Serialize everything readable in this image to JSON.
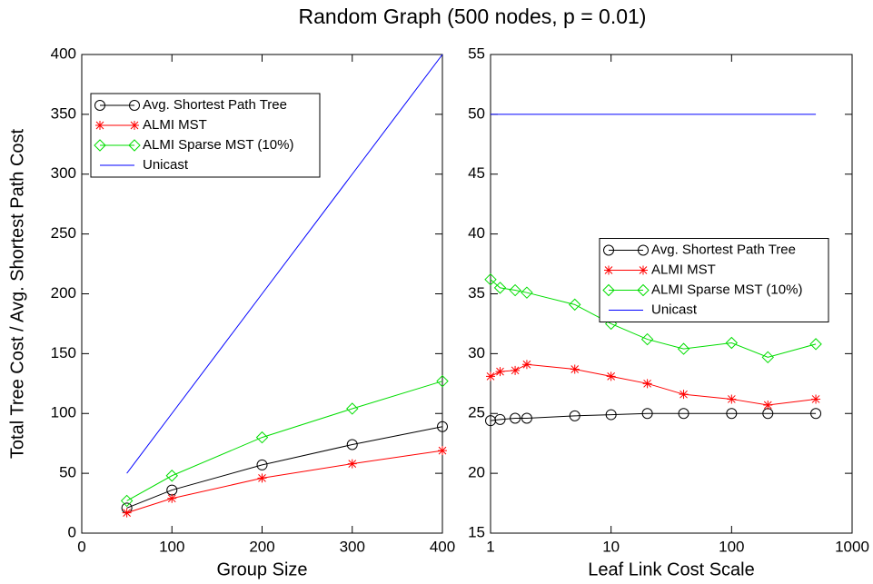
{
  "title": "Random Graph (500 nodes, p = 0.01)",
  "chart_data": [
    {
      "type": "line",
      "xlabel": "Group Size",
      "ylabel": "Total Tree Cost / Avg. Shortest Path Cost",
      "xlim": [
        0,
        400
      ],
      "xticks": [
        0,
        100,
        200,
        300,
        400
      ],
      "ylim": [
        0,
        400
      ],
      "yticks": [
        0,
        50,
        100,
        150,
        200,
        250,
        300,
        350,
        400
      ],
      "xscale": "linear",
      "legend": "upper left",
      "x": [
        50,
        100,
        200,
        300,
        400
      ],
      "series": [
        {
          "name": "Avg. Shortest Path Tree",
          "color": "#000000",
          "marker": "circle",
          "values": [
            21,
            36,
            57,
            74,
            89
          ]
        },
        {
          "name": "ALMI MST",
          "color": "#ff0000",
          "marker": "star",
          "values": [
            17,
            29,
            46,
            58,
            69
          ]
        },
        {
          "name": "ALMI Sparse MST (10%)",
          "color": "#00dd00",
          "marker": "diamond",
          "values": [
            27,
            48,
            80,
            104,
            127
          ]
        },
        {
          "name": "Unicast",
          "color": "#0000ff",
          "marker": "none",
          "values": [
            50,
            100,
            200,
            300,
            400
          ]
        }
      ]
    },
    {
      "type": "line",
      "xlabel": "Leaf Link Cost Scale",
      "xlim": [
        1,
        1000
      ],
      "xticks": [
        1,
        10,
        100,
        1000
      ],
      "ylim": [
        15,
        55
      ],
      "yticks": [
        15,
        20,
        25,
        30,
        35,
        40,
        45,
        50,
        55
      ],
      "xscale": "log",
      "legend": "center right",
      "x": [
        1,
        1.2,
        1.6,
        2,
        5,
        10,
        20,
        40,
        100,
        200,
        500
      ],
      "series": [
        {
          "name": "Avg. Shortest Path Tree",
          "color": "#000000",
          "marker": "circle",
          "values": [
            24.4,
            24.5,
            24.6,
            24.6,
            24.8,
            24.9,
            25,
            25,
            25,
            25,
            25
          ]
        },
        {
          "name": "ALMI MST",
          "color": "#ff0000",
          "marker": "star",
          "values": [
            28.1,
            28.5,
            28.6,
            29.1,
            28.7,
            28.1,
            27.5,
            26.6,
            26.2,
            25.7,
            26.2
          ]
        },
        {
          "name": "ALMI Sparse MST (10%)",
          "color": "#00dd00",
          "marker": "diamond",
          "values": [
            36.2,
            35.5,
            35.3,
            35.1,
            34.1,
            32.5,
            31.2,
            30.4,
            30.9,
            29.7,
            30.8
          ]
        },
        {
          "name": "Unicast",
          "color": "#0000ff",
          "marker": "none",
          "values": [
            50,
            50,
            50,
            50,
            50,
            50,
            50,
            50,
            50,
            50,
            50
          ]
        }
      ]
    }
  ]
}
